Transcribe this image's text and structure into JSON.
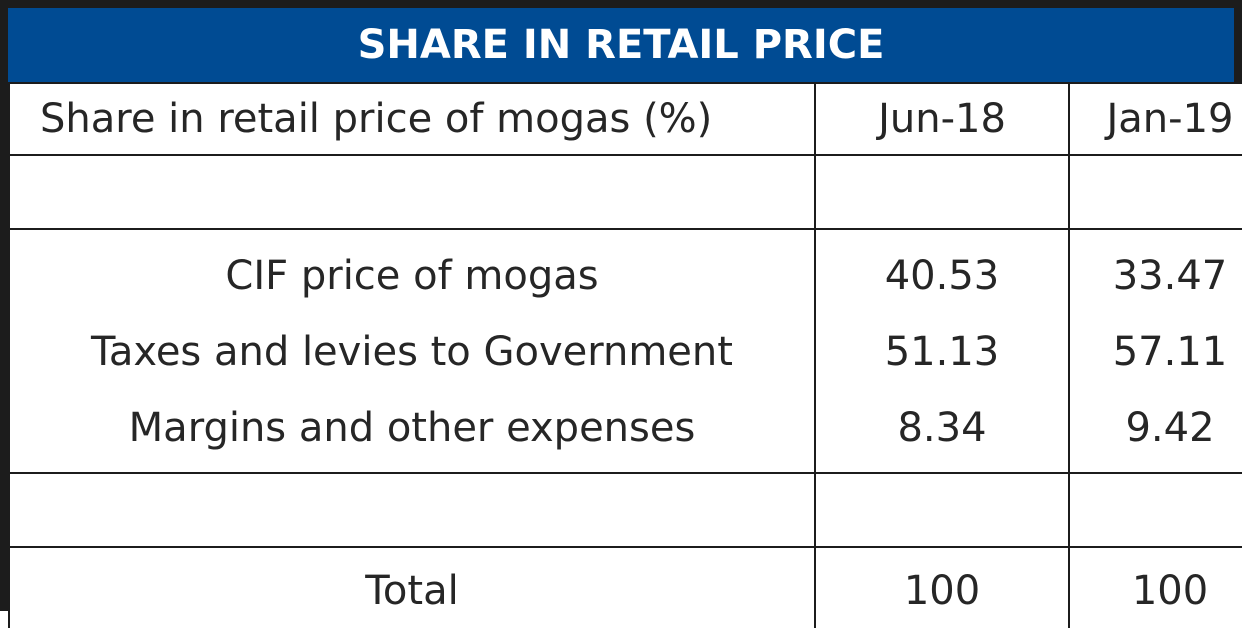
{
  "title": "SHARE IN RETAIL PRICE",
  "chart_data": {
    "type": "table",
    "title": "SHARE IN RETAIL PRICE",
    "columns": [
      "Share in retail price of mogas (%)",
      "Jun-18",
      "Jan-19"
    ],
    "rows": [
      {
        "label": "CIF price of mogas",
        "values": [
          "40.53",
          "33.47"
        ]
      },
      {
        "label": "Taxes and levies to Government",
        "values": [
          "51.13",
          "57.11"
        ]
      },
      {
        "label": "Margins and other expenses",
        "values": [
          "8.34",
          "9.42"
        ]
      },
      {
        "label": "Total",
        "values": [
          "100",
          "100"
        ]
      }
    ]
  },
  "colors": {
    "title_background": "#004b93",
    "title_text": "#ffffff",
    "border": "#1c1c1c",
    "cell_text": "#262626"
  }
}
